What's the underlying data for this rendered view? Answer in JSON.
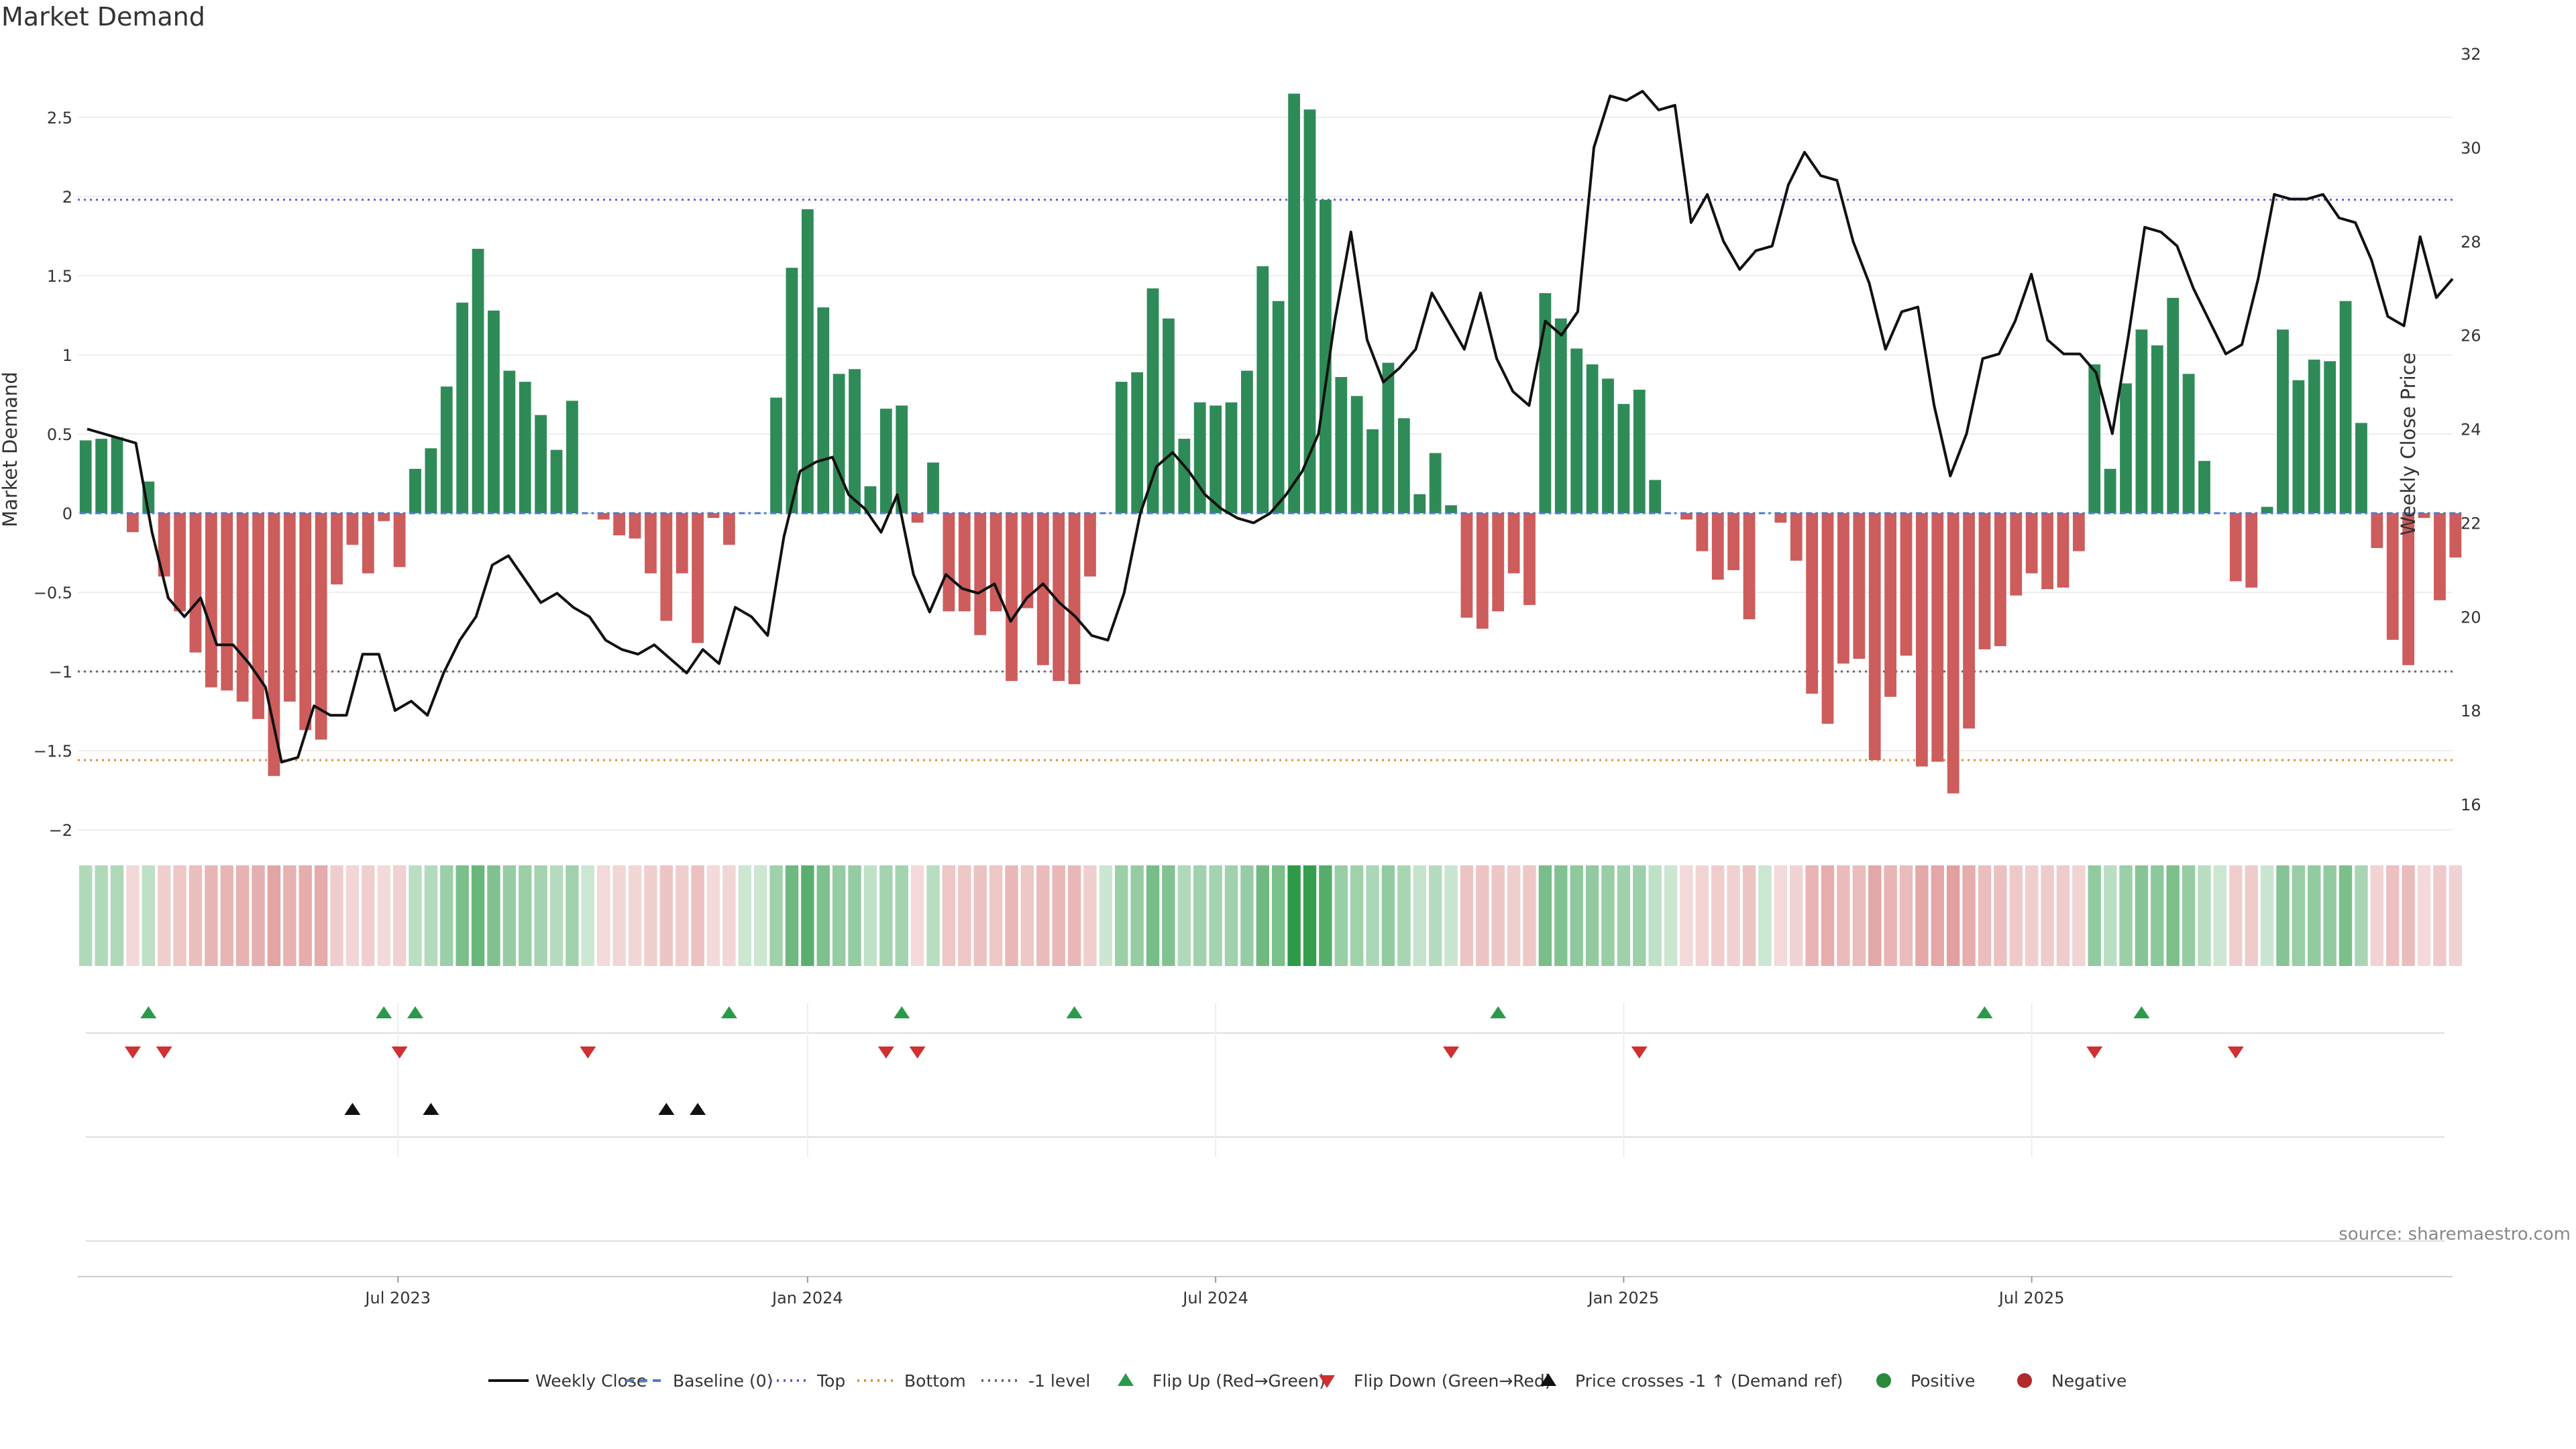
{
  "chart_data": {
    "type": "bar",
    "title": "Market Demand",
    "ylabel": "Market Demand",
    "ylabel_right": "Weekly Close Price",
    "ylim": [
      -2.2,
      2.9
    ],
    "ylim_right": [
      15,
      32
    ],
    "yticks": [
      "2.5",
      "2",
      "1.5",
      "1",
      "0.5",
      "0",
      "−0.5",
      "−1",
      "−1.5",
      "−2"
    ],
    "yticks_values": [
      2.5,
      2,
      1.5,
      1,
      0.5,
      0,
      -0.5,
      -1,
      -1.5,
      -2
    ],
    "yticks_right": [
      "32",
      "30",
      "28",
      "26",
      "24",
      "22",
      "20",
      "18",
      "16"
    ],
    "yticks_right_values": [
      32,
      30,
      28,
      26,
      24,
      22,
      20,
      18,
      16
    ],
    "x_months": [
      "Jul 2023",
      "Jan 2024",
      "Jul 2024",
      "Jan 2025",
      "Jul 2025"
    ],
    "x_month_index": [
      20.4,
      46.5,
      72.5,
      98.5,
      124.5
    ],
    "reference_lines": {
      "top": 1.98,
      "bottom": -1.56,
      "minus_one": -1.0
    },
    "demand": [
      0.46,
      0.47,
      0.48,
      -0.12,
      0.2,
      -0.4,
      -0.62,
      -0.88,
      -1.1,
      -1.12,
      -1.19,
      -1.3,
      -1.66,
      -1.19,
      -1.37,
      -1.43,
      -0.45,
      -0.2,
      -0.38,
      -0.05,
      -0.34,
      0.28,
      0.41,
      0.8,
      1.33,
      1.67,
      1.28,
      0.9,
      0.83,
      0.62,
      0.4,
      0.71,
      0.0,
      -0.04,
      -0.14,
      -0.16,
      -0.38,
      -0.68,
      -0.38,
      -0.82,
      -0.03,
      -0.2,
      0.0,
      0.0,
      0.73,
      1.55,
      1.92,
      1.3,
      0.88,
      0.91,
      0.17,
      0.66,
      0.68,
      -0.06,
      0.32,
      -0.62,
      -0.62,
      -0.77,
      -0.62,
      -1.06,
      -0.6,
      -0.96,
      -1.06,
      -1.08,
      -0.4,
      0.0,
      0.83,
      0.89,
      1.42,
      1.23,
      0.47,
      0.7,
      0.68,
      0.7,
      0.9,
      1.56,
      1.34,
      2.65,
      2.55,
      1.98,
      0.86,
      0.74,
      0.53,
      0.95,
      0.6,
      0.12,
      0.38,
      0.05,
      -0.66,
      -0.73,
      -0.62,
      -0.38,
      -0.58,
      1.39,
      1.23,
      1.04,
      0.94,
      0.85,
      0.69,
      0.78,
      0.21,
      0.0,
      -0.04,
      -0.24,
      -0.42,
      -0.36,
      -0.67,
      0.0,
      -0.06,
      -0.3,
      -1.14,
      -1.33,
      -0.95,
      -0.92,
      -1.56,
      -1.16,
      -0.9,
      -1.6,
      -1.57,
      -1.77,
      -1.36,
      -0.86,
      -0.84,
      -0.52,
      -0.38,
      -0.48,
      -0.47,
      -0.24,
      0.94,
      0.28,
      0.82,
      1.16,
      1.06,
      1.36,
      0.88,
      0.33,
      0.0,
      -0.43,
      -0.47,
      0.04,
      1.16,
      0.84,
      0.97,
      0.96,
      1.34,
      0.57,
      -0.22,
      -0.8,
      -0.96,
      -0.03,
      -0.55,
      -0.28
    ],
    "weekly_close": [
      24.0,
      23.9,
      23.8,
      23.7,
      21.8,
      20.4,
      20.0,
      20.4,
      19.4,
      19.4,
      19.0,
      18.5,
      16.9,
      17.0,
      18.1,
      17.9,
      17.9,
      19.2,
      19.2,
      18.0,
      18.2,
      17.9,
      18.8,
      19.5,
      20.0,
      21.1,
      21.3,
      20.8,
      20.3,
      20.5,
      20.2,
      20.0,
      19.5,
      19.3,
      19.2,
      19.4,
      19.1,
      18.8,
      19.3,
      19.0,
      20.2,
      20.0,
      19.6,
      21.7,
      23.1,
      23.3,
      23.4,
      22.6,
      22.3,
      21.8,
      22.6,
      20.9,
      20.1,
      20.9,
      20.6,
      20.5,
      20.7,
      19.9,
      20.4,
      20.7,
      20.3,
      20.0,
      19.6,
      19.5,
      20.5,
      22.2,
      23.2,
      23.5,
      23.1,
      22.6,
      22.3,
      22.1,
      22.0,
      22.2,
      22.6,
      23.1,
      23.9,
      26.3,
      28.2,
      25.9,
      25.0,
      25.3,
      25.7,
      26.9,
      26.3,
      25.7,
      26.9,
      25.5,
      24.8,
      24.5,
      26.3,
      26.0,
      26.5,
      30.0,
      31.1,
      31.0,
      31.2,
      30.8,
      30.9,
      28.4,
      29.0,
      28.0,
      27.4,
      27.8,
      27.9,
      29.2,
      29.9,
      29.4,
      29.3,
      28.0,
      27.1,
      25.7,
      26.5,
      26.6,
      24.5,
      23.0,
      23.9,
      25.5,
      25.6,
      26.3,
      27.3,
      25.9,
      25.6,
      25.6,
      25.2,
      23.9,
      26.0,
      28.3,
      28.2,
      27.9,
      27.0,
      26.3,
      25.6,
      25.8,
      27.2,
      29.0,
      28.9,
      28.9,
      29.0,
      28.5,
      28.4,
      27.6,
      26.4,
      26.2,
      28.1,
      26.8,
      27.2
    ],
    "flip_up": [
      4,
      19,
      21,
      41,
      52,
      63,
      90,
      121,
      131
    ],
    "flip_down": [
      3,
      5,
      20,
      32,
      51,
      53,
      87,
      99,
      128,
      137
    ],
    "price_crosses": [
      17,
      22,
      37,
      39
    ],
    "legend": [
      {
        "label": "Weekly Close",
        "kind": "line",
        "color": "#111111"
      },
      {
        "label": "Baseline (0)",
        "kind": "dash",
        "color": "#4a7bd0"
      },
      {
        "label": "Top",
        "kind": "dot",
        "color": "#6a5acd"
      },
      {
        "label": "Bottom",
        "kind": "dot",
        "color": "#e09030"
      },
      {
        "label": "-1 level",
        "kind": "dot",
        "color": "#666666"
      },
      {
        "label": "Flip Up (Red→Green)",
        "kind": "tri-up",
        "color": "#2a9a4a"
      },
      {
        "label": "Flip Down (Green→Red)",
        "kind": "tri-down",
        "color": "#d03030"
      },
      {
        "label": "Price crosses -1 ↑ (Demand ref)",
        "kind": "tri-up",
        "color": "#111111"
      },
      {
        "label": "Positive",
        "kind": "dot-marker",
        "color": "#2a8a3a"
      },
      {
        "label": "Negative",
        "kind": "dot-marker",
        "color": "#b02a2a"
      }
    ],
    "source": "source: sharemaestro.com"
  },
  "colors": {
    "positive": "#2e8b57",
    "negative": "#cd5c5c",
    "line": "#111111"
  }
}
